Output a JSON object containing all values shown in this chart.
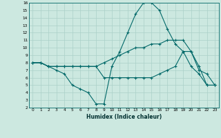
{
  "xlabel": "Humidex (Indice chaleur)",
  "bg_color": "#cce8e0",
  "grid_color": "#aad0c8",
  "line_color": "#006868",
  "xlim": [
    -0.5,
    23.5
  ],
  "ylim": [
    2,
    16
  ],
  "xticks": [
    0,
    1,
    2,
    3,
    4,
    5,
    6,
    7,
    8,
    9,
    10,
    11,
    12,
    13,
    14,
    15,
    16,
    17,
    18,
    19,
    20,
    21,
    22,
    23
  ],
  "yticks": [
    2,
    3,
    4,
    5,
    6,
    7,
    8,
    9,
    10,
    11,
    12,
    13,
    14,
    15,
    16
  ],
  "series": [
    [
      8,
      8,
      7.5,
      7,
      6.5,
      5,
      4.5,
      4,
      2.5,
      2.5,
      7.5,
      9.5,
      12,
      14.5,
      16,
      16,
      15,
      12.5,
      10.5,
      9.5,
      7.5,
      6.5,
      5,
      5
    ],
    [
      8,
      8,
      7.5,
      7.5,
      7.5,
      7.5,
      7.5,
      7.5,
      7.5,
      8,
      8.5,
      9,
      9.5,
      10,
      10,
      10.5,
      10.5,
      11,
      11,
      11,
      9.5,
      7,
      6.5,
      5
    ],
    [
      8,
      8,
      7.5,
      7.5,
      7.5,
      7.5,
      7.5,
      7.5,
      7.5,
      6,
      6,
      6,
      6,
      6,
      6,
      6,
      6.5,
      7,
      7.5,
      9.5,
      9.5,
      7.5,
      5,
      5
    ]
  ]
}
